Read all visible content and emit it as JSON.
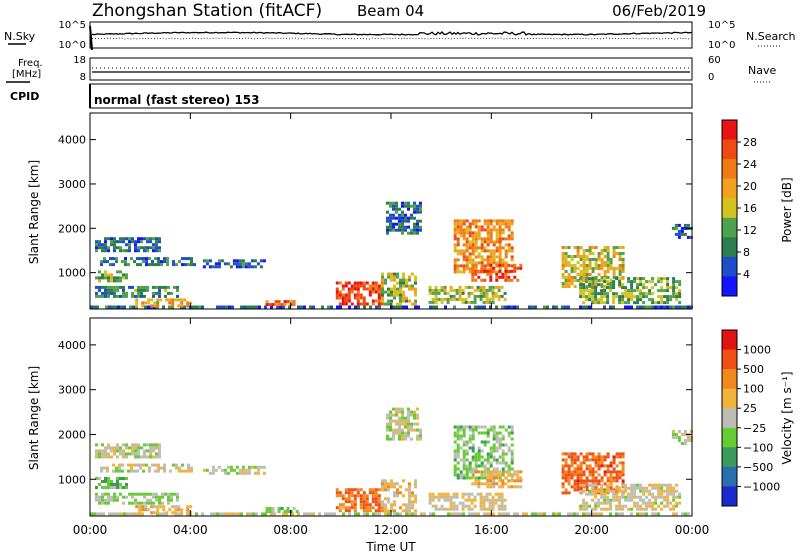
{
  "header": {
    "station": "Zhongshan Station (fitACF)",
    "beam": "Beam 04",
    "date": "06/Feb/2019"
  },
  "noise_panel": {
    "left_label": "N.Sky",
    "right_label": "N.Search",
    "left_ticks": [
      "10^5",
      "10^0"
    ],
    "right_ticks": [
      "10^5",
      "10^0"
    ]
  },
  "freq_panel": {
    "label_line1": "Freq.",
    "label_line2": "[MHz]",
    "left_ticks": [
      "18",
      "8"
    ],
    "right_label": "Nave",
    "right_ticks": [
      "60",
      "0"
    ]
  },
  "cpid": {
    "label": "CPID",
    "mode": "normal (fast stereo) 153"
  },
  "axes": {
    "ylabel": "Slant Range [km]",
    "yticks": [
      "1000",
      "2000",
      "3000",
      "4000"
    ],
    "xlabel": "Time UT",
    "xticks": [
      "00:00",
      "04:00",
      "08:00",
      "12:00",
      "16:00",
      "20:00",
      "00:00"
    ]
  },
  "colors": {
    "power": [
      "#1414ff",
      "#1e4fc8",
      "#2e7d4f",
      "#4ea24e",
      "#d4c21e",
      "#f0a21e",
      "#f07a14",
      "#f04a14",
      "#e81414"
    ],
    "velocity": [
      "#e01414",
      "#f05014",
      "#f08a1e",
      "#f0b43c",
      "#bdbdb5",
      "#66cc33",
      "#3a9a5a",
      "#2a70b0",
      "#1a2ad0"
    ]
  },
  "chart_data": [
    {
      "type": "heatmap",
      "title": "Power",
      "ylabel": "Slant Range [km]",
      "xlabel": "",
      "ylim": [
        180,
        4600
      ],
      "xlim_hours": [
        0,
        24
      ],
      "colorbar": {
        "label": "Power [dB]",
        "ticks": [
          "4",
          "8",
          "12",
          "16",
          "20",
          "24",
          "28"
        ],
        "range": [
          0,
          30
        ]
      },
      "regions": [
        {
          "t0": 0.0,
          "t1": 24.0,
          "r0": 200,
          "r1": 260,
          "value": 6
        },
        {
          "t0": 0.2,
          "t1": 2.8,
          "r0": 1500,
          "r1": 1800,
          "value": 7
        },
        {
          "t0": 0.4,
          "t1": 4.2,
          "r0": 1150,
          "r1": 1350,
          "value": 8
        },
        {
          "t0": 0.2,
          "t1": 1.5,
          "r0": 800,
          "r1": 1050,
          "value": 12
        },
        {
          "t0": 0.2,
          "t1": 3.5,
          "r0": 450,
          "r1": 700,
          "value": 9
        },
        {
          "t0": 1.8,
          "t1": 4.0,
          "r0": 280,
          "r1": 420,
          "value": 18
        },
        {
          "t0": 4.5,
          "t1": 7.0,
          "r0": 1100,
          "r1": 1300,
          "value": 6
        },
        {
          "t0": 7.0,
          "t1": 8.2,
          "r0": 250,
          "r1": 380,
          "value": 24
        },
        {
          "t0": 9.8,
          "t1": 11.6,
          "r0": 300,
          "r1": 800,
          "value": 26
        },
        {
          "t0": 11.6,
          "t1": 13.0,
          "r0": 300,
          "r1": 1000,
          "value": 14
        },
        {
          "t0": 11.8,
          "t1": 13.2,
          "r0": 1900,
          "r1": 2600,
          "value": 7
        },
        {
          "t0": 14.5,
          "t1": 16.8,
          "r0": 1000,
          "r1": 2200,
          "value": 20
        },
        {
          "t0": 15.2,
          "t1": 17.2,
          "r0": 800,
          "r1": 1200,
          "value": 26
        },
        {
          "t0": 13.5,
          "t1": 16.5,
          "r0": 300,
          "r1": 700,
          "value": 14
        },
        {
          "t0": 18.8,
          "t1": 21.2,
          "r0": 700,
          "r1": 1600,
          "value": 16
        },
        {
          "t0": 19.5,
          "t1": 23.5,
          "r0": 300,
          "r1": 900,
          "value": 12
        },
        {
          "t0": 23.2,
          "t1": 24.0,
          "r0": 1800,
          "r1": 2100,
          "value": 6
        }
      ]
    },
    {
      "type": "heatmap",
      "title": "Velocity",
      "ylabel": "Slant Range [km]",
      "xlabel": "Time UT",
      "ylim": [
        180,
        4600
      ],
      "xlim_hours": [
        0,
        24
      ],
      "colorbar": {
        "label": "Velocity [m s⁻¹]",
        "ticks": [
          "1000",
          "500",
          "100",
          "25",
          "−25",
          "−100",
          "−500",
          "−1000"
        ],
        "range": [
          -1200,
          1200
        ]
      },
      "regions": [
        {
          "t0": 0.0,
          "t1": 24.0,
          "r0": 200,
          "r1": 260,
          "value": 0
        },
        {
          "t0": 0.2,
          "t1": 2.8,
          "r0": 1500,
          "r1": 1800,
          "value": 0
        },
        {
          "t0": 0.4,
          "t1": 4.2,
          "r0": 1150,
          "r1": 1350,
          "value": 10
        },
        {
          "t0": 0.2,
          "t1": 1.5,
          "r0": 800,
          "r1": 1050,
          "value": -300
        },
        {
          "t0": 0.2,
          "t1": 3.5,
          "r0": 450,
          "r1": 700,
          "value": -150
        },
        {
          "t0": 1.8,
          "t1": 4.0,
          "r0": 280,
          "r1": 420,
          "value": 300
        },
        {
          "t0": 4.5,
          "t1": 7.0,
          "r0": 1100,
          "r1": 1300,
          "value": 0
        },
        {
          "t0": 7.0,
          "t1": 8.2,
          "r0": 250,
          "r1": 380,
          "value": -200
        },
        {
          "t0": 9.8,
          "t1": 11.6,
          "r0": 300,
          "r1": 800,
          "value": 600
        },
        {
          "t0": 11.6,
          "t1": 13.0,
          "r0": 300,
          "r1": 1000,
          "value": 200
        },
        {
          "t0": 11.8,
          "t1": 13.2,
          "r0": 1900,
          "r1": 2600,
          "value": 0
        },
        {
          "t0": 14.5,
          "t1": 16.8,
          "r0": 1000,
          "r1": 2200,
          "value": -200
        },
        {
          "t0": 15.2,
          "t1": 17.2,
          "r0": 800,
          "r1": 1200,
          "value": 300
        },
        {
          "t0": 13.5,
          "t1": 16.5,
          "r0": 300,
          "r1": 700,
          "value": 150
        },
        {
          "t0": 18.8,
          "t1": 21.2,
          "r0": 700,
          "r1": 1600,
          "value": 700
        },
        {
          "t0": 19.5,
          "t1": 23.5,
          "r0": 300,
          "r1": 900,
          "value": 80
        },
        {
          "t0": 23.2,
          "t1": 24.0,
          "r0": 1800,
          "r1": 2100,
          "value": 0
        }
      ]
    }
  ]
}
